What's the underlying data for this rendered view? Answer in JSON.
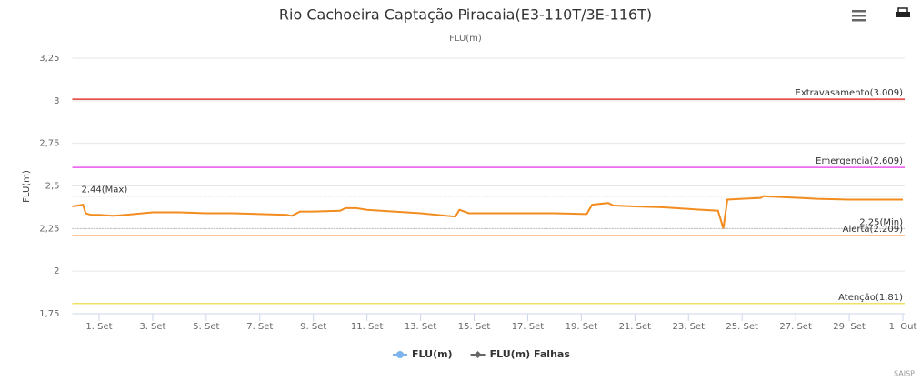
{
  "chart_data": {
    "type": "line",
    "title": "Rio Cachoeira Captação Piracaia(E3-110T/3E-116T)",
    "subtitle": "FLU(m)",
    "y_label": "FLU(m)",
    "credits": "SAISP",
    "xlim": [
      -1,
      30
    ],
    "xticks": [
      {
        "value": 0,
        "label": "1. Set"
      },
      {
        "value": 2,
        "label": "3. Set"
      },
      {
        "value": 4,
        "label": "5. Set"
      },
      {
        "value": 6,
        "label": "7. Set"
      },
      {
        "value": 8,
        "label": "9. Set"
      },
      {
        "value": 10,
        "label": "11. Set"
      },
      {
        "value": 12,
        "label": "13. Set"
      },
      {
        "value": 14,
        "label": "15. Set"
      },
      {
        "value": 16,
        "label": "17. Set"
      },
      {
        "value": 18,
        "label": "19. Set"
      },
      {
        "value": 20,
        "label": "21. Set"
      },
      {
        "value": 22,
        "label": "23. Set"
      },
      {
        "value": 24,
        "label": "25. Set"
      },
      {
        "value": 26,
        "label": "27. Set"
      },
      {
        "value": 28,
        "label": "29. Set"
      },
      {
        "value": 30,
        "label": "1. Out"
      }
    ],
    "ylim": [
      1.75,
      3.25
    ],
    "yticks": [
      {
        "value": 1.75,
        "label": "1,75"
      },
      2,
      {
        "value": 2.25,
        "label": "2,25"
      },
      {
        "value": 2.5,
        "label": "2,5"
      },
      {
        "value": 2.75,
        "label": "2,75"
      },
      3,
      {
        "value": 3.25,
        "label": "3,25"
      }
    ],
    "grid": true,
    "plot_lines": [
      {
        "value": 3.009,
        "label": "Extravasamento(3.009)",
        "color": "#e53935",
        "dash": "solid",
        "align": "right"
      },
      {
        "value": 2.609,
        "label": "Emergencia(2.609)",
        "color": "#ee55ee",
        "dash": "solid",
        "align": "right"
      },
      {
        "value": 2.44,
        "label": "2.44(Max)",
        "color": "#999999",
        "dash": "dot",
        "align": "left"
      },
      {
        "value": 2.25,
        "label": "2.25(Min)",
        "color": "#999999",
        "dash": "dot",
        "align": "right"
      },
      {
        "value": 2.209,
        "label": "Alerta(2.209)",
        "color": "#f5b27a",
        "dash": "solid",
        "align": "right"
      },
      {
        "value": 1.81,
        "label": "Atenção(1.81)",
        "color": "#f0e060",
        "dash": "solid",
        "align": "right"
      }
    ],
    "series": [
      {
        "name": "FLU(m)",
        "color": "#7cb5ec",
        "line_color": "#f28c1e",
        "x": [
          -1,
          -0.6,
          -0.5,
          -0.3,
          0,
          0.5,
          1,
          2,
          3,
          4,
          5,
          6,
          7,
          7.2,
          7.5,
          8,
          9,
          9.2,
          9.6,
          10,
          11,
          12,
          13.3,
          13.45,
          13.8,
          15,
          16,
          17,
          18.2,
          18.4,
          19,
          19.2,
          20,
          21,
          22,
          23.1,
          23.3,
          23.45,
          24,
          24.7,
          24.8,
          25.5,
          26.8,
          28,
          30
        ],
        "values": [
          2.38,
          2.39,
          2.34,
          2.33,
          2.33,
          2.325,
          2.33,
          2.345,
          2.345,
          2.34,
          2.34,
          2.335,
          2.33,
          2.325,
          2.35,
          2.35,
          2.355,
          2.37,
          2.37,
          2.36,
          2.35,
          2.34,
          2.32,
          2.36,
          2.34,
          2.34,
          2.34,
          2.34,
          2.335,
          2.39,
          2.4,
          2.385,
          2.38,
          2.375,
          2.365,
          2.355,
          2.25,
          2.42,
          2.425,
          2.43,
          2.44,
          2.435,
          2.425,
          2.42,
          2.42
        ]
      },
      {
        "name": "FLU(m) Falhas",
        "color": "#666666"
      }
    ]
  }
}
